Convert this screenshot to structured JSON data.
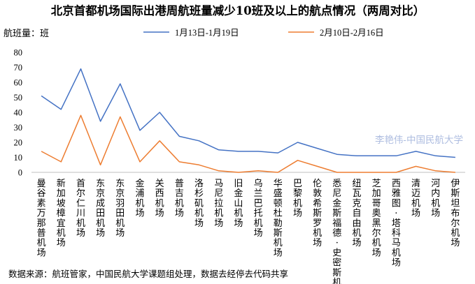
{
  "chart_data": {
    "type": "line",
    "title": "北京首都机场国际出港周航班量减少10班及以上的航点情况（两周对比）",
    "ylabel": "航班量：班",
    "xlabel": "",
    "ylim": [
      0,
      80
    ],
    "yticks": [
      0,
      10,
      20,
      30,
      40,
      50,
      60,
      70,
      80
    ],
    "grid": false,
    "legend_position": "top",
    "categories": [
      "曼谷素万那普机场",
      "新加坡樟宜机场",
      "首尔仁川机场",
      "东京成田机场",
      "东京羽田机场",
      "金浦机场",
      "关西机场",
      "普吉机场",
      "洛杉矶机场",
      "马尼拉机场",
      "旧金山机场",
      "乌兰巴托机场",
      "华盛顿杜勒斯机场",
      "巴黎机场",
      "伦敦希斯罗机场",
      "悉尼金斯福德·史密斯机场",
      "纽瓦克自由机场",
      "芝加哥奥黑尔机场",
      "西雅图·塔科马机场",
      "清迈机场",
      "河内机场",
      "伊斯坦布尔机场"
    ],
    "series": [
      {
        "name": "1月13日-1月19日",
        "color": "#4472C4",
        "values": [
          51,
          42,
          69,
          34,
          59,
          28,
          40,
          24,
          21,
          15,
          14,
          14,
          13,
          20,
          16,
          12,
          11,
          11,
          11,
          14,
          11,
          10
        ]
      },
      {
        "name": "2月10日-2月16日",
        "color": "#ED7D31",
        "values": [
          14,
          7,
          38,
          5,
          37,
          7,
          21,
          7,
          5,
          1,
          0,
          1,
          0,
          8,
          4,
          0,
          0,
          0,
          0,
          4,
          1,
          0
        ]
      }
    ],
    "watermark": "李艳伟-中国民航大学",
    "source_note": "数据来源：航班管家，中国民航大学课题组处理，数据去经停去代码共享"
  }
}
